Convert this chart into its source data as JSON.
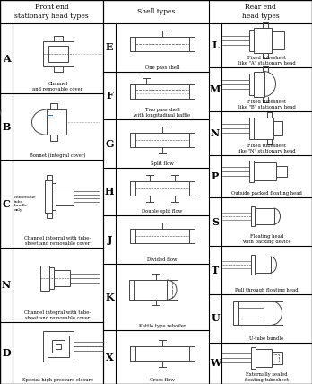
{
  "title_col1": "Front end\nstationary head types",
  "title_col2": "Shell types",
  "title_col3": "Rear end\nhead types",
  "col1_rows": [
    {
      "letter": "A",
      "caption": "Channel\nand removable cover"
    },
    {
      "letter": "B",
      "caption": "Bonnet (integral cover)"
    },
    {
      "letter": "C",
      "caption": "Removable\ntube\nbundle\nonly",
      "caption2": "Channel integral with tube-\nsheet and removable cover"
    },
    {
      "letter": "N",
      "caption": "Channel integral with tube-\nsheet and removable cover"
    },
    {
      "letter": "D",
      "caption": "Special high pressure closure"
    }
  ],
  "col2_rows": [
    {
      "letter": "E",
      "caption": "One pass shell"
    },
    {
      "letter": "F",
      "caption": "Two pass shell\nwith longitudinal baffle"
    },
    {
      "letter": "G",
      "caption": "Split flow"
    },
    {
      "letter": "H",
      "caption": "Double split flow"
    },
    {
      "letter": "J",
      "caption": "Divided flow"
    },
    {
      "letter": "K",
      "caption": "Kettle type reboiler"
    },
    {
      "letter": "X",
      "caption": "Cross flow"
    }
  ],
  "col3_rows": [
    {
      "letter": "L",
      "caption": "Fixed tubesheet\nlike \"A\" stationary head"
    },
    {
      "letter": "M",
      "caption": "Fixed tubesheet\nlike \"B\" stationary head"
    },
    {
      "letter": "N",
      "caption": "Fixed tubesheet\nlike \"N\" stationary head"
    },
    {
      "letter": "P",
      "caption": "Outside packed floating head"
    },
    {
      "letter": "S",
      "caption": "Floating head\nwith backing device"
    },
    {
      "letter": "T",
      "caption": "Pull through floating head"
    },
    {
      "letter": "U",
      "caption": "U-tube bundle"
    },
    {
      "letter": "W",
      "caption": "Externally sealed\nfloating tubesheet"
    }
  ],
  "col1_heights": [
    80,
    75,
    100,
    85,
    70
  ],
  "col2_heights": [
    52,
    52,
    52,
    52,
    52,
    72,
    58
  ],
  "col3_heights": [
    50,
    50,
    50,
    48,
    55,
    55,
    55,
    47
  ]
}
